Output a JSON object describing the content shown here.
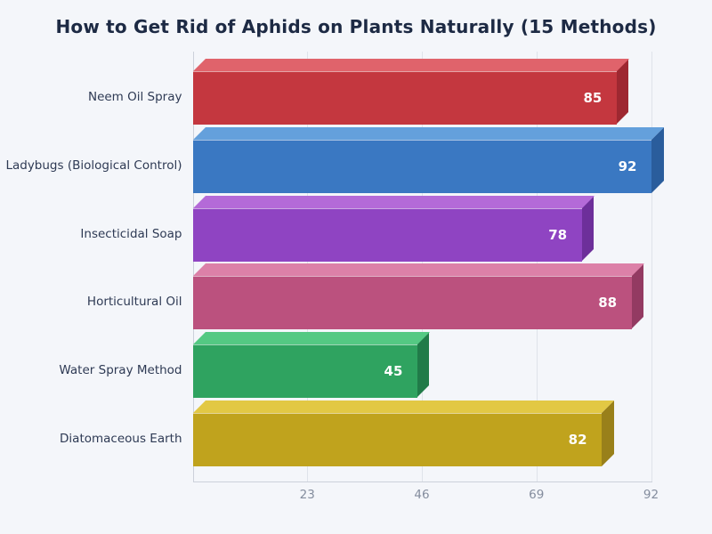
{
  "page": {
    "background": "#f4f6fa"
  },
  "chart_data": {
    "type": "bar",
    "orientation": "horizontal",
    "title": "How to Get Rid of Aphids on Plants Naturally (15 Methods)",
    "xlabel": "",
    "ylabel": "",
    "categories": [
      "Neem Oil Spray",
      "Ladybugs (Biological Control)",
      "Insecticidal Soap",
      "Horticultural Oil",
      "Water Spray Method",
      "Diatomaceous Earth"
    ],
    "values": [
      85,
      92,
      78,
      88,
      45,
      82
    ],
    "value_label_position": "inside-end",
    "value_label_color": "#ffffff",
    "xlim": [
      0,
      92
    ],
    "x_ticks": [
      23,
      46,
      69,
      92
    ],
    "grid": true,
    "bar_style": "3d-extruded",
    "bar_colors": [
      {
        "name": "red",
        "front": "#c4373f",
        "top": "#e0636b",
        "side": "#9e2831"
      },
      {
        "name": "blue",
        "front": "#3a78c2",
        "top": "#64a0dc",
        "side": "#2a5d9c"
      },
      {
        "name": "purple",
        "front": "#8f44c2",
        "top": "#b46ad8",
        "side": "#6d2f9a"
      },
      {
        "name": "pink",
        "front": "#bb517e",
        "top": "#dc80a8",
        "side": "#933a62"
      },
      {
        "name": "green",
        "front": "#2fa360",
        "top": "#54c983",
        "side": "#217b49"
      },
      {
        "name": "yellow",
        "front": "#c0a31d",
        "top": "#e2c844",
        "side": "#99801a"
      }
    ],
    "axis_style": {
      "tick_label_color": "#848d9e",
      "axis_line_color": "#ccd1da",
      "grid_line_color": "#dfe3ea",
      "category_label_color": "#2e3a54"
    },
    "title_color": "#1d2a44"
  }
}
